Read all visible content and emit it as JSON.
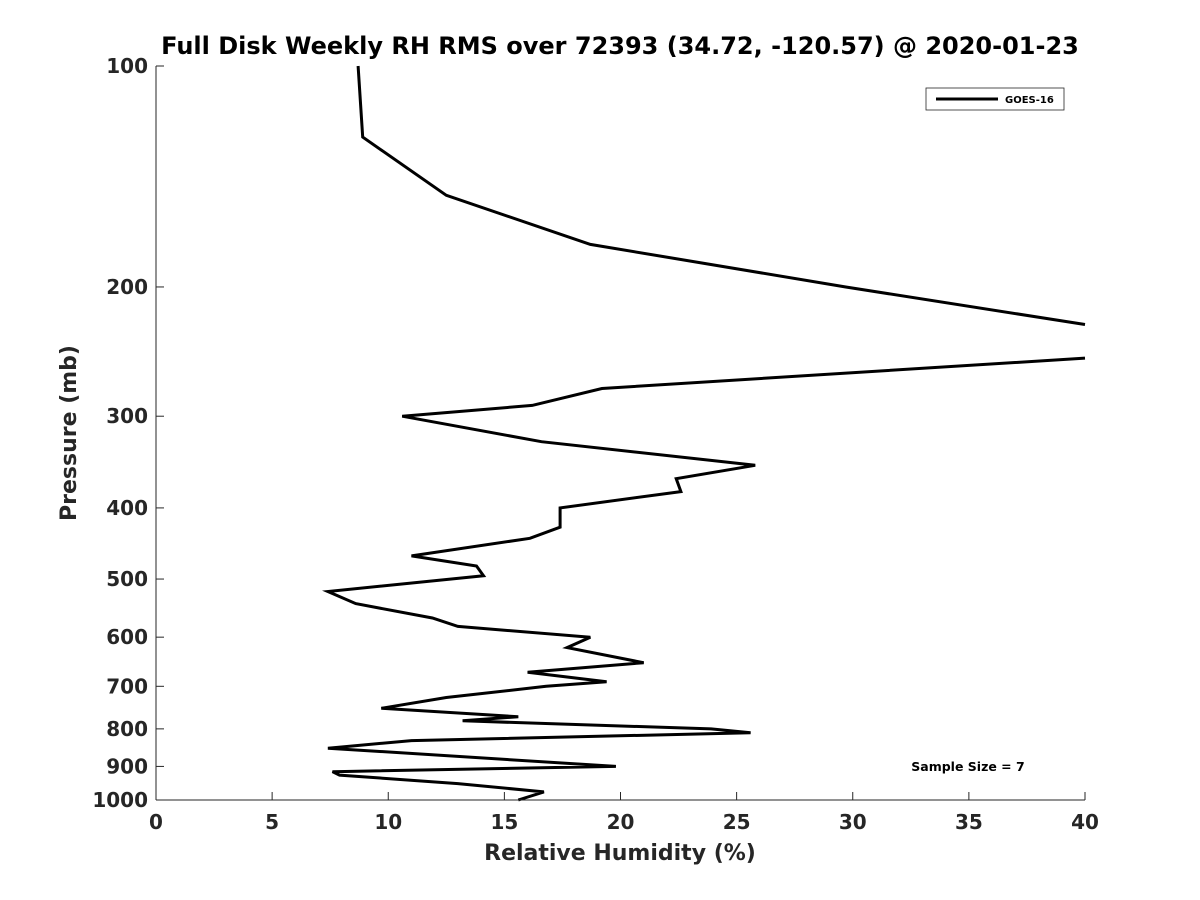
{
  "chart_data": {
    "type": "line",
    "title": "Full Disk Weekly RH RMS over 72393 (34.72, -120.57) @ 2020-01-23",
    "xlabel": "Relative Humidity (%)",
    "ylabel": "Pressure (mb)",
    "xlim": [
      0,
      40
    ],
    "ylim": [
      100,
      1000
    ],
    "yscale": "log",
    "y_reversed": true,
    "grid": false,
    "legend_position": "top-right",
    "x_ticks": [
      0,
      5,
      10,
      15,
      20,
      25,
      30,
      35,
      40
    ],
    "y_ticks": [
      100,
      200,
      300,
      400,
      500,
      600,
      700,
      800,
      900,
      1000
    ],
    "series": [
      {
        "name": "GOES-16",
        "color": "#000000",
        "segments": [
          {
            "x": [
              8.7,
              8.9,
              12.5,
              18.7,
              29.7,
              40.0
            ],
            "y": [
              100,
              125,
              150,
              175,
              200,
              225
            ]
          },
          {
            "x": [
              40.0,
              19.2,
              16.2,
              10.6,
              16.6,
              25.8,
              22.4,
              22.6,
              17.4,
              17.4,
              16.1,
              11.0,
              13.8,
              14.1,
              7.4,
              8.6,
              11.9,
              13.0,
              18.7,
              17.7,
              21.0,
              16.0,
              19.4,
              16.8,
              12.5,
              9.7,
              15.6,
              13.2,
              23.9,
              25.6,
              11.0,
              7.4,
              19.8,
              7.6,
              7.9,
              13.0,
              16.7,
              15.6
            ],
            "y": [
              250,
              275,
              290,
              300,
              325,
              350,
              365,
              380,
              400,
              425,
              440,
              465,
              480,
              495,
              520,
              540,
              565,
              580,
              600,
              620,
              650,
              670,
              690,
              700,
              725,
              750,
              770,
              780,
              800,
              810,
              830,
              850,
              900,
              915,
              925,
              950,
              975,
              1000
            ]
          }
        ]
      }
    ],
    "annotations": [
      "Sample Size = 7"
    ]
  }
}
